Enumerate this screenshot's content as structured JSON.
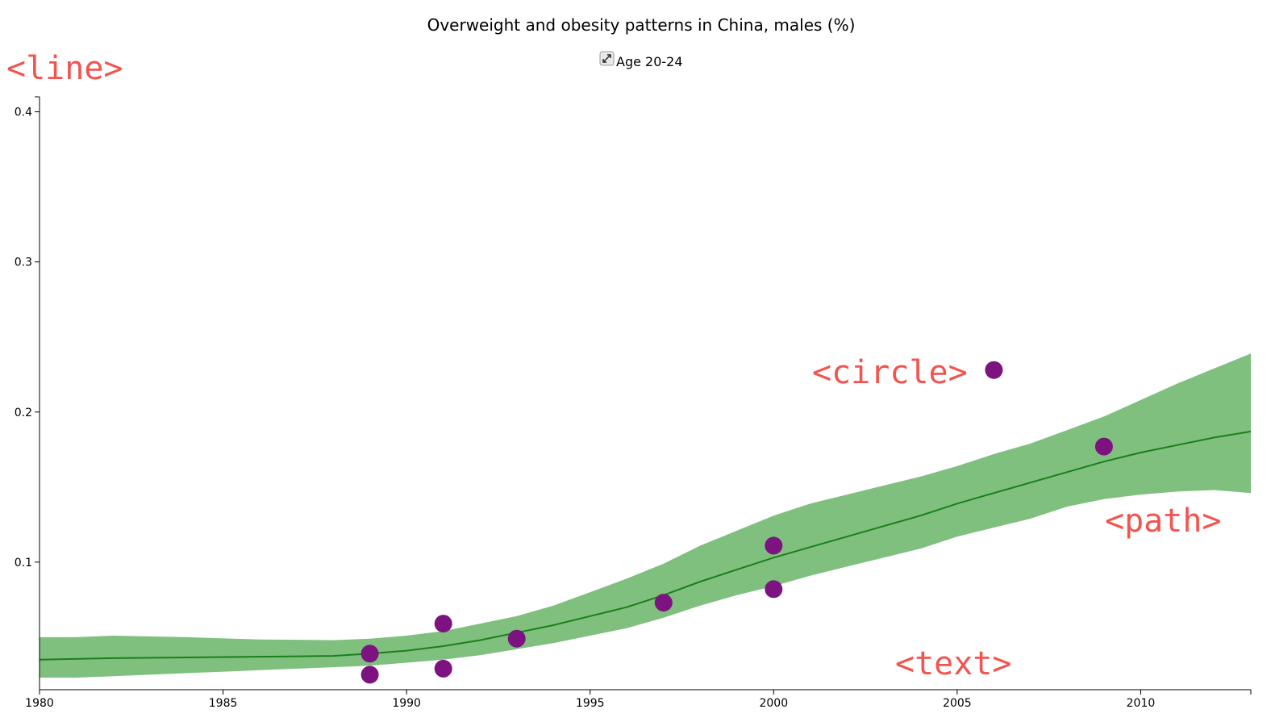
{
  "chart_data": {
    "type": "line",
    "title": "Overweight and obesity patterns in China, males (%)",
    "xlabel": "",
    "ylabel": "",
    "xlim": [
      1980,
      2013
    ],
    "ylim": [
      0.015,
      0.41
    ],
    "x_ticks": [
      1980,
      1985,
      1990,
      1995,
      2000,
      2005,
      2010
    ],
    "y_ticks": [
      0.1,
      0.2,
      0.3,
      0.4
    ],
    "legend": {
      "label": "Age 20-24",
      "icon": "expand-arrows-icon",
      "placement": "top-center"
    },
    "series": [
      {
        "kind": "line",
        "color": "#1a7f1a",
        "x": [
          1980,
          1982,
          1984,
          1986,
          1988,
          1989,
          1990,
          1991,
          1992,
          1993,
          1994,
          1995,
          1996,
          1997,
          1998,
          1999,
          2000,
          2001,
          2002,
          2003,
          2004,
          2005,
          2006,
          2007,
          2008,
          2009,
          2010,
          2011,
          2012,
          2013
        ],
        "y": [
          0.035,
          0.036,
          0.0365,
          0.037,
          0.0375,
          0.039,
          0.041,
          0.044,
          0.048,
          0.053,
          0.058,
          0.064,
          0.07,
          0.078,
          0.087,
          0.095,
          0.103,
          0.11,
          0.117,
          0.124,
          0.131,
          0.139,
          0.146,
          0.153,
          0.16,
          0.167,
          0.173,
          0.178,
          0.183,
          0.187
        ]
      },
      {
        "kind": "band",
        "color": "#7fc07f",
        "x": [
          1980,
          1981,
          1982,
          1984,
          1986,
          1988,
          1989,
          1990,
          1991,
          1992,
          1993,
          1994,
          1995,
          1996,
          1997,
          1998,
          1999,
          2000,
          2001,
          2002,
          2003,
          2004,
          2005,
          2006,
          2007,
          2008,
          2009,
          2010,
          2011,
          2012,
          2013
        ],
        "upper": [
          0.05,
          0.05,
          0.051,
          0.05,
          0.0485,
          0.048,
          0.049,
          0.051,
          0.054,
          0.059,
          0.064,
          0.071,
          0.08,
          0.089,
          0.099,
          0.111,
          0.121,
          0.131,
          0.139,
          0.145,
          0.151,
          0.157,
          0.164,
          0.172,
          0.179,
          0.188,
          0.197,
          0.208,
          0.219,
          0.229,
          0.239
        ],
        "lower": [
          0.023,
          0.023,
          0.024,
          0.026,
          0.028,
          0.03,
          0.031,
          0.033,
          0.035,
          0.038,
          0.042,
          0.046,
          0.051,
          0.056,
          0.063,
          0.071,
          0.078,
          0.084,
          0.091,
          0.097,
          0.103,
          0.109,
          0.117,
          0.123,
          0.129,
          0.137,
          0.142,
          0.145,
          0.147,
          0.148,
          0.146
        ]
      },
      {
        "kind": "scatter",
        "color": "#7d1380",
        "x": [
          1989,
          1989,
          1991,
          1991,
          1993,
          1997,
          2000,
          2000,
          2006,
          2009
        ],
        "y": [
          0.039,
          0.025,
          0.059,
          0.029,
          0.049,
          0.073,
          0.111,
          0.082,
          0.228,
          0.177
        ]
      }
    ],
    "annotations": [
      {
        "text": "<line>",
        "color": "#f2544f"
      },
      {
        "text": "<circle>",
        "color": "#f2544f"
      },
      {
        "text": "<path>",
        "color": "#f2544f"
      },
      {
        "text": "<text>",
        "color": "#f2544f"
      }
    ]
  }
}
